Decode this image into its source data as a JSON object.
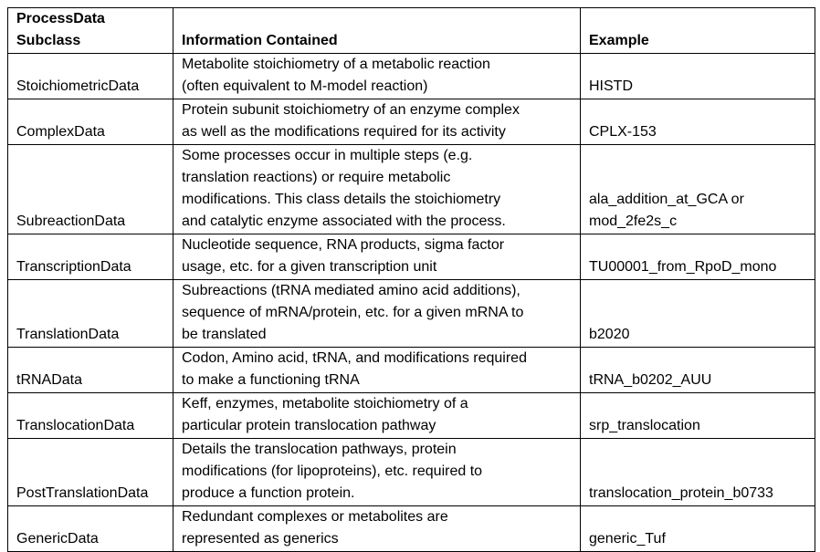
{
  "header": {
    "subclass_line1": "ProcessData",
    "subclass_line2": "Subclass",
    "information": "Information Contained",
    "example": "Example"
  },
  "rows": [
    {
      "subclass": "StoichiometricData",
      "info": [
        "Metabolite stoichiometry of a metabolic reaction",
        "(often equivalent to M-model reaction)"
      ],
      "example": [
        "HISTD"
      ]
    },
    {
      "subclass": "ComplexData",
      "info": [
        "Protein subunit stoichiometry of an enzyme complex",
        "as well as the modifications required for its activity"
      ],
      "example": [
        "CPLX-153"
      ]
    },
    {
      "subclass": "SubreactionData",
      "info": [
        "Some processes occur in multiple steps (e.g.",
        "translation reactions) or require metabolic",
        "modifications. This class details the  stoichiometry",
        "and catalytic enzyme associated with the process."
      ],
      "example": [
        "ala_addition_at_GCA or",
        "mod_2fe2s_c"
      ]
    },
    {
      "subclass": "TranscriptionData",
      "info": [
        "Nucleotide sequence, RNA products, sigma factor",
        "usage, etc. for a given transcription unit"
      ],
      "example": [
        "TU00001_from_RpoD_mono"
      ]
    },
    {
      "subclass": "TranslationData",
      "info": [
        "Subreactions (tRNA mediated amino acid additions),",
        "sequence of mRNA/protein, etc. for a given mRNA to",
        "be translated"
      ],
      "example": [
        "b2020"
      ]
    },
    {
      "subclass": "tRNAData",
      "info": [
        "Codon, Amino acid, tRNA, and modifications required",
        "to make a functioning tRNA"
      ],
      "example": [
        "tRNA_b0202_AUU"
      ]
    },
    {
      "subclass": "TranslocationData",
      "info": [
        "Keff, enzymes, metabolite stoichiometry of a",
        "particular protein translocation pathway"
      ],
      "example": [
        "srp_translocation"
      ]
    },
    {
      "subclass": "PostTranslationData",
      "info": [
        "Details the translocation pathways, protein",
        "modifications (for lipoproteins), etc. required to",
        "produce a function protein."
      ],
      "example": [
        "translocation_protein_b0733"
      ]
    },
    {
      "subclass": "GenericData",
      "info": [
        "Redundant complexes or metabolites are",
        "represented as generics"
      ],
      "example": [
        "generic_Tuf"
      ]
    }
  ]
}
